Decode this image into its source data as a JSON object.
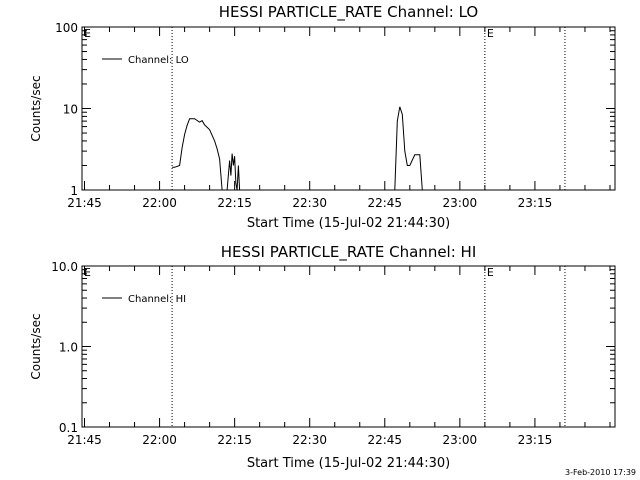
{
  "chart_data": [
    {
      "type": "line",
      "title": "HESSI PARTICLE_RATE Channel: LO",
      "xlabel": "Start Time (15-Jul-02 21:44:30)",
      "ylabel": "Counts/sec",
      "yscale": "log",
      "xlim": [
        "21:44:30",
        "23:31:00"
      ],
      "ylim": [
        1,
        100
      ],
      "x_ticks": [
        "21:45",
        "22:00",
        "22:15",
        "22:30",
        "22:45",
        "23:00",
        "23:15"
      ],
      "y_ticks": [
        "1",
        "10",
        "100"
      ],
      "legend": {
        "label": "Channel: LO",
        "placement": "top-left"
      },
      "flags": [
        {
          "text": "E",
          "time": "21:44:30"
        },
        {
          "text": "E",
          "time": "23:05:00"
        }
      ],
      "markers": [
        "22:02:30",
        "23:05:00",
        "23:21:00"
      ],
      "series": [
        {
          "x": [
            "22:02:30",
            "22:03:00",
            "22:04:00",
            "22:04:30",
            "22:05:00",
            "22:05:30",
            "22:06:00",
            "22:07:00",
            "22:08:00",
            "22:08:30",
            "22:09:00",
            "22:10:00",
            "22:11:00",
            "22:11:30",
            "22:12:00",
            "22:12:30",
            "22:13:30",
            "22:14:00",
            "22:14:15",
            "22:14:30",
            "22:14:45",
            "22:15:00",
            "22:15:15",
            "22:15:30",
            "22:15:45",
            "22:16:00",
            "22:47:00",
            "22:47:30",
            "22:48:00",
            "22:48:30",
            "22:49:00",
            "22:49:30",
            "22:50:00",
            "22:51:00",
            "22:51:30",
            "22:52:00",
            "22:52:30"
          ],
          "y": [
            1.9,
            1.9,
            2.0,
            3.3,
            4.8,
            6.2,
            7.5,
            7.5,
            6.8,
            7.1,
            6.3,
            5.5,
            4.0,
            3.2,
            2.4,
            1.0,
            1.0,
            2.3,
            1.5,
            2.8,
            2.0,
            2.6,
            1.2,
            1.0,
            2.0,
            1.0,
            1.0,
            7.0,
            10.5,
            8.5,
            3.0,
            2.0,
            2.0,
            2.7,
            2.7,
            2.7,
            1.0
          ],
          "segments": [
            [
              0,
              15
            ],
            [
              16,
              25
            ],
            [
              26,
              36
            ]
          ]
        }
      ]
    },
    {
      "type": "line",
      "title": "HESSI PARTICLE_RATE Channel: HI",
      "xlabel": "Start Time (15-Jul-02 21:44:30)",
      "ylabel": "Counts/sec",
      "yscale": "log",
      "xlim": [
        "21:44:30",
        "23:31:00"
      ],
      "ylim": [
        0.1,
        10
      ],
      "x_ticks": [
        "21:45",
        "22:00",
        "22:15",
        "22:30",
        "22:45",
        "23:00",
        "23:15"
      ],
      "y_ticks": [
        "0.1",
        "1.0",
        "10.0"
      ],
      "legend": {
        "label": "Channel: HI",
        "placement": "top-left"
      },
      "flags": [
        {
          "text": "E",
          "time": "21:44:30"
        },
        {
          "text": "E",
          "time": "23:05:00"
        }
      ],
      "markers": [
        "22:02:30",
        "23:05:00",
        "23:21:00"
      ],
      "series": []
    }
  ],
  "timestamp": "3-Feb-2010 17:39"
}
